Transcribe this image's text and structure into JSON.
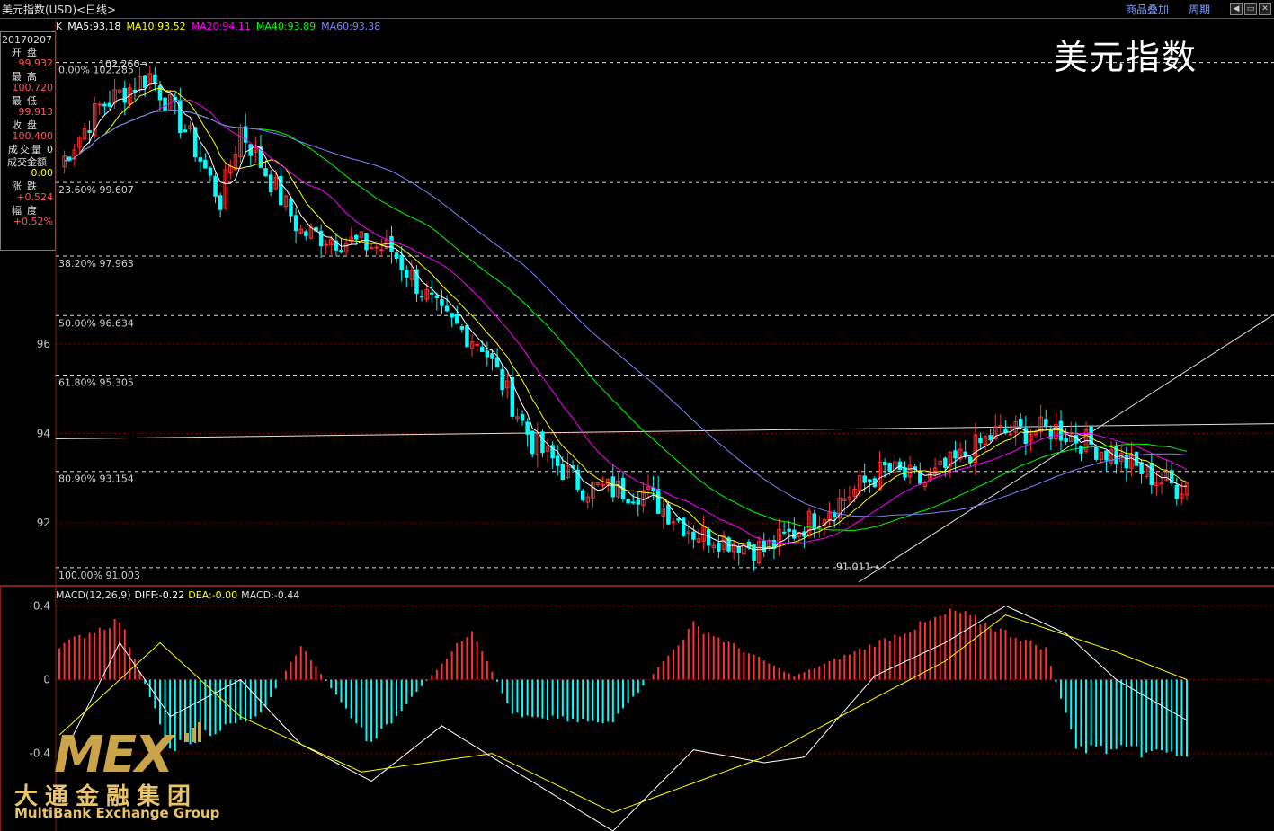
{
  "window": {
    "title": "美元指数(USD)<日线>",
    "links": [
      "商品叠加",
      "周期"
    ]
  },
  "info_panel": {
    "date": "20170207",
    "rows": [
      {
        "label": "开盘",
        "value": "99.932",
        "color": "#ff5555"
      },
      {
        "label": "最高",
        "value": "100.720",
        "color": "#ff5555"
      },
      {
        "label": "最低",
        "value": "99.913",
        "color": "#ff5555"
      },
      {
        "label": "收盘",
        "value": "100.400",
        "color": "#ff5555"
      },
      {
        "label": "成交量",
        "value": "0",
        "color": "#dddddd"
      },
      {
        "label": "成交金额",
        "value": "0.00",
        "color": "#ffff00"
      },
      {
        "label": "涨跌",
        "value": "+0.524",
        "color": "#ff5555"
      },
      {
        "label": "幅度",
        "value": "+0.52%",
        "color": "#ff5555"
      }
    ]
  },
  "ma_legend": [
    {
      "text": "K",
      "color": "#dddddd"
    },
    {
      "text": "MA5:93.18",
      "color": "#ffffff"
    },
    {
      "text": "MA10:93.52",
      "color": "#ffff00"
    },
    {
      "text": "MA20:94.11",
      "color": "#ff00ff"
    },
    {
      "text": "MA40:93.89",
      "color": "#00ff00"
    },
    {
      "text": "MA60:93.38",
      "color": "#8080ff"
    }
  ],
  "macd_legend": [
    {
      "text": "MACD(12,26,9)",
      "color": "#dddddd"
    },
    {
      "text": "DIFF:-0.22",
      "color": "#ffffff"
    },
    {
      "text": "DEA:-0.00",
      "color": "#ffff00"
    },
    {
      "text": "MACD:-0.44",
      "color": "#dddddd"
    }
  ],
  "big_title": "美元指数",
  "logo": {
    "main": "MEX",
    "cn": "大通金融集团",
    "en": "MultiBank Exchange Group"
  },
  "colors": {
    "up": "#ff3030",
    "down": "#00ffff",
    "grid": "#8b0000"
  },
  "chart_data": {
    "type": "candlestick",
    "price_axis": {
      "ticks": [
        96,
        94,
        92
      ],
      "range": [
        90.6,
        103.0
      ]
    },
    "macd_axis": {
      "ticks": [
        0.4,
        0,
        -0.4
      ],
      "range": [
        -0.82,
        0.46
      ]
    },
    "fib_levels": [
      {
        "label": "0.00% 102.285",
        "value": 102.285
      },
      {
        "label": "23.60% 99.607",
        "value": 99.607
      },
      {
        "label": "38.20% 97.963",
        "value": 97.963
      },
      {
        "label": "50.00% 96.634",
        "value": 96.634
      },
      {
        "label": "61.80% 95.305",
        "value": 95.305
      },
      {
        "label": "80.90% 93.154",
        "value": 93.154
      },
      {
        "label": "100.00% 91.003",
        "value": 91.003
      }
    ],
    "annotations": [
      {
        "text": "102.260",
        "value": 102.26
      },
      {
        "text": "91.011",
        "value": 91.011
      }
    ],
    "close_path": [
      [
        0,
        100.0
      ],
      [
        8,
        101.3
      ],
      [
        18,
        102.0
      ],
      [
        26,
        100.6
      ],
      [
        32,
        99.2
      ],
      [
        36,
        100.8
      ],
      [
        48,
        98.5
      ],
      [
        66,
        98.1
      ],
      [
        76,
        96.6
      ],
      [
        84,
        96.0
      ],
      [
        94,
        93.8
      ],
      [
        104,
        92.8
      ],
      [
        116,
        92.7
      ],
      [
        126,
        91.8
      ],
      [
        134,
        91.6
      ],
      [
        140,
        91.4
      ],
      [
        146,
        91.8
      ],
      [
        164,
        93.2
      ],
      [
        172,
        92.9
      ],
      [
        186,
        94.0
      ],
      [
        198,
        94.1
      ],
      [
        208,
        93.6
      ],
      [
        216,
        93.1
      ],
      [
        222,
        92.8
      ],
      [
        224,
        92.9
      ]
    ],
    "macd_hist_path": [
      [
        0,
        0.2
      ],
      [
        12,
        0.35
      ],
      [
        22,
        -0.4
      ],
      [
        40,
        -0.2
      ],
      [
        48,
        0.2
      ],
      [
        62,
        -0.38
      ],
      [
        82,
        0.3
      ],
      [
        90,
        -0.2
      ],
      [
        110,
        -0.25
      ],
      [
        126,
        0.32
      ],
      [
        146,
        0.02
      ],
      [
        178,
        0.4
      ],
      [
        196,
        0.18
      ],
      [
        202,
        -0.4
      ],
      [
        224,
        -0.44
      ]
    ],
    "dif_path": [
      [
        0,
        -0.45
      ],
      [
        12,
        0.2
      ],
      [
        22,
        -0.2
      ],
      [
        36,
        0.0
      ],
      [
        48,
        -0.35
      ],
      [
        62,
        -0.55
      ],
      [
        76,
        -0.25
      ],
      [
        86,
        -0.42
      ],
      [
        110,
        -0.82
      ],
      [
        126,
        -0.38
      ],
      [
        140,
        -0.45
      ],
      [
        148,
        -0.42
      ],
      [
        162,
        0.02
      ],
      [
        176,
        0.2
      ],
      [
        188,
        0.4
      ],
      [
        200,
        0.25
      ],
      [
        210,
        0.0
      ],
      [
        224,
        -0.22
      ]
    ],
    "dea_path": [
      [
        0,
        -0.3
      ],
      [
        20,
        0.2
      ],
      [
        36,
        -0.2
      ],
      [
        60,
        -0.5
      ],
      [
        86,
        -0.4
      ],
      [
        110,
        -0.72
      ],
      [
        140,
        -0.42
      ],
      [
        162,
        -0.1
      ],
      [
        176,
        0.1
      ],
      [
        188,
        0.35
      ],
      [
        210,
        0.15
      ],
      [
        224,
        0.0
      ]
    ]
  }
}
